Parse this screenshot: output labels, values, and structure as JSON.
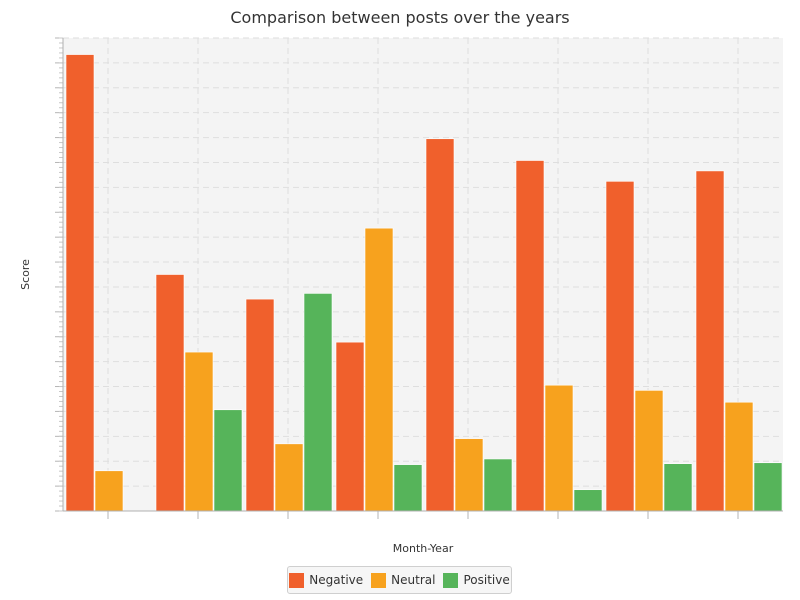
{
  "chart_data": {
    "type": "bar",
    "title": "Comparison between posts over the years",
    "xlabel": "Month-Year",
    "ylabel": "Score",
    "ylim": [
      0,
      100
    ],
    "grid": true,
    "legend_position": "bottom-center",
    "categories": [
      "",
      "",
      "",
      "",
      "",
      "",
      "",
      ""
    ],
    "series": [
      {
        "name": "Negative",
        "color": "#f0602c",
        "values": [
          96.5,
          50.0,
          44.8,
          35.7,
          78.7,
          74.1,
          69.7,
          71.9
        ]
      },
      {
        "name": "Neutral",
        "color": "#f7a21e",
        "values": [
          8.5,
          33.6,
          14.2,
          59.8,
          15.3,
          26.6,
          25.5,
          23.0
        ]
      },
      {
        "name": "Positive",
        "color": "#56b45a",
        "values": [
          0,
          21.4,
          46.0,
          9.8,
          11.0,
          4.5,
          10.0,
          10.2
        ]
      }
    ]
  }
}
